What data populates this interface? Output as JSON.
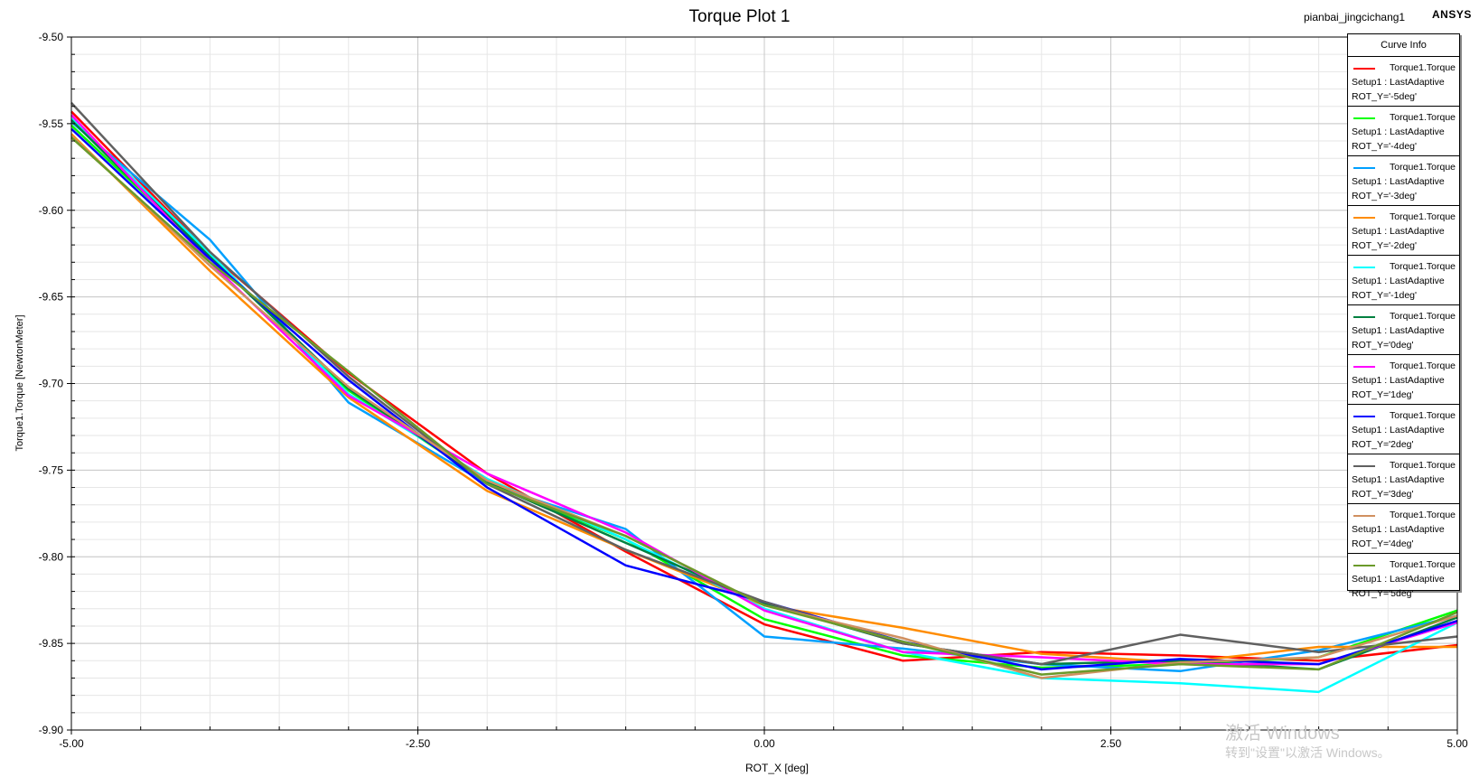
{
  "header": {
    "title": "Torque Plot 1",
    "design_name": "pianbai_jingcichang1",
    "brand": "ANSYS"
  },
  "watermark": {
    "line1": "激活 Windows",
    "line2": "转到\"设置\"以激活 Windows。"
  },
  "colors": {
    "grid_major": "#c8c8c8",
    "grid_minor": "#e6e6e6",
    "axis": "#000000"
  },
  "chart_data": {
    "type": "line",
    "title": "Torque Plot 1",
    "xlabel": "ROT_X [deg]",
    "ylabel": "Torque1.Torque [NewtonMeter]",
    "xlim": [
      -5,
      5
    ],
    "ylim": [
      -9.9,
      -9.5
    ],
    "xticks": [
      -5,
      -2.5,
      0,
      2.5,
      5
    ],
    "xtick_labels": [
      "-5.00",
      "-2.50",
      "0.00",
      "2.50",
      "5.00"
    ],
    "yticks": [
      -9.5,
      -9.55,
      -9.6,
      -9.65,
      -9.7,
      -9.75,
      -9.8,
      -9.85,
      -9.9
    ],
    "ytick_labels": [
      "-9.50",
      "-9.55",
      "-9.60",
      "-9.65",
      "-9.70",
      "-9.75",
      "-9.80",
      "-9.85",
      "-9.90"
    ],
    "grid": true,
    "legend_title": "Curve Info",
    "legend_position": "top-right",
    "x": [
      -5,
      -4,
      -3,
      -2,
      -1,
      0,
      1,
      2,
      3,
      4,
      5
    ],
    "series": [
      {
        "name": "Torque1.Torque",
        "setup": "Setup1 : LastAdaptive",
        "param": "ROT_Y='-5deg'",
        "color": "#ff0000",
        "values": [
          -9.543,
          -9.625,
          -9.694,
          -9.752,
          -9.797,
          -9.839,
          -9.86,
          -9.855,
          -9.857,
          -9.86,
          -9.851
        ]
      },
      {
        "name": "Torque1.Torque",
        "setup": "Setup1 : LastAdaptive",
        "param": "ROT_Y='-4deg'",
        "color": "#00ff00",
        "values": [
          -9.551,
          -9.626,
          -9.704,
          -9.757,
          -9.79,
          -9.836,
          -9.857,
          -9.864,
          -9.862,
          -9.858,
          -9.831
        ]
      },
      {
        "name": "Torque1.Torque",
        "setup": "Setup1 : LastAdaptive",
        "param": "ROT_Y='-3deg'",
        "color": "#00a0ff",
        "values": [
          -9.549,
          -9.617,
          -9.711,
          -9.758,
          -9.784,
          -9.846,
          -9.853,
          -9.862,
          -9.866,
          -9.854,
          -9.834
        ]
      },
      {
        "name": "Torque1.Torque",
        "setup": "Setup1 : LastAdaptive",
        "param": "ROT_Y='-2deg'",
        "color": "#ff8c00",
        "values": [
          -9.556,
          -9.635,
          -9.708,
          -9.762,
          -9.796,
          -9.828,
          -9.841,
          -9.856,
          -9.861,
          -9.852,
          -9.852
        ]
      },
      {
        "name": "Torque1.Torque",
        "setup": "Setup1 : LastAdaptive",
        "param": "ROT_Y='-1deg'",
        "color": "#00ffff",
        "values": [
          -9.547,
          -9.625,
          -9.706,
          -9.755,
          -9.79,
          -9.83,
          -9.855,
          -9.87,
          -9.873,
          -9.878,
          -9.838
        ]
      },
      {
        "name": "Torque1.Torque",
        "setup": "Setup1 : LastAdaptive",
        "param": "ROT_Y='0deg'",
        "color": "#008040",
        "values": [
          -9.548,
          -9.627,
          -9.703,
          -9.757,
          -9.792,
          -9.827,
          -9.85,
          -9.862,
          -9.86,
          -9.865,
          -9.835
        ]
      },
      {
        "name": "Torque1.Torque",
        "setup": "Setup1 : LastAdaptive",
        "param": "ROT_Y='1deg'",
        "color": "#ff00ff",
        "values": [
          -9.545,
          -9.63,
          -9.707,
          -9.752,
          -9.786,
          -9.831,
          -9.855,
          -9.858,
          -9.862,
          -9.862,
          -9.838
        ]
      },
      {
        "name": "Torque1.Torque",
        "setup": "Setup1 : LastAdaptive",
        "param": "ROT_Y='2deg'",
        "color": "#0000ff",
        "values": [
          -9.553,
          -9.628,
          -9.698,
          -9.76,
          -9.805,
          -9.826,
          -9.849,
          -9.865,
          -9.859,
          -9.862,
          -9.837
        ]
      },
      {
        "name": "Torque1.Torque",
        "setup": "Setup1 : LastAdaptive",
        "param": "ROT_Y='3deg'",
        "color": "#606060",
        "values": [
          -9.538,
          -9.624,
          -9.696,
          -9.758,
          -9.796,
          -9.826,
          -9.85,
          -9.862,
          -9.845,
          -9.855,
          -9.846
        ]
      },
      {
        "name": "Torque1.Torque",
        "setup": "Setup1 : LastAdaptive",
        "param": "ROT_Y='4deg'",
        "color": "#d09060",
        "values": [
          -9.557,
          -9.632,
          -9.702,
          -9.756,
          -9.788,
          -9.828,
          -9.847,
          -9.87,
          -9.861,
          -9.858,
          -9.834
        ]
      },
      {
        "name": "Torque1.Torque",
        "setup": "Setup1 : LastAdaptive",
        "param": "ROT_Y='5deg'",
        "color": "#6b9a2a",
        "values": [
          -9.558,
          -9.63,
          -9.693,
          -9.758,
          -9.788,
          -9.828,
          -9.849,
          -9.868,
          -9.862,
          -9.865,
          -9.832
        ]
      }
    ]
  }
}
